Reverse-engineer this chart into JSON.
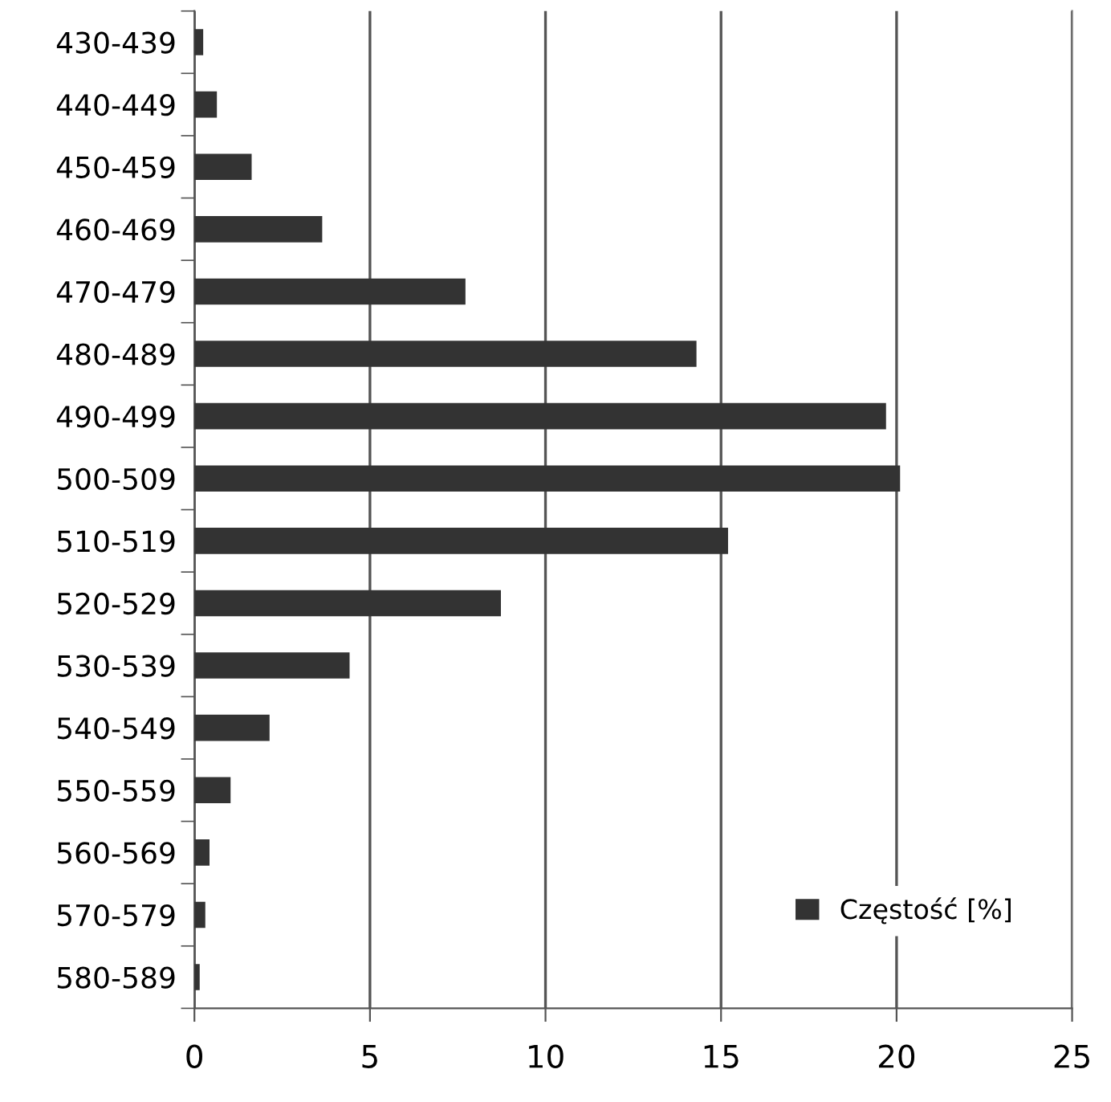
{
  "chart_data": {
    "type": "bar",
    "orientation": "horizontal",
    "categories": [
      "430-439",
      "440-449",
      "450-459",
      "460-469",
      "470-479",
      "480-489",
      "490-499",
      "500-509",
      "510-519",
      "520-529",
      "530-539",
      "540-549",
      "550-559",
      "560-569",
      "570-579",
      "580-589"
    ],
    "series": [
      {
        "name": "Częstość [%]",
        "color": "#333333",
        "values": [
          0.25,
          0.64,
          1.63,
          3.64,
          7.72,
          14.3,
          19.7,
          20.1,
          15.2,
          8.73,
          4.42,
          2.14,
          1.03,
          0.43,
          0.31,
          0.15
        ]
      }
    ],
    "xlim": [
      0,
      25
    ],
    "xticks": [
      0,
      5,
      10,
      15,
      20,
      25
    ],
    "grid": "x",
    "legend": "bottom right"
  }
}
